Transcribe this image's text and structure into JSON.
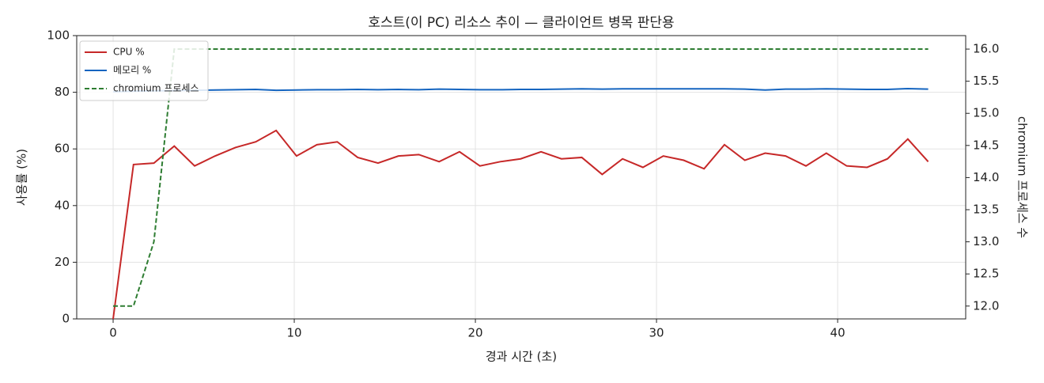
{
  "chart_data": {
    "type": "line",
    "title": "호스트(이 PC) 리소스 추이 — 클라이언트 병목 판단용",
    "x_label": "경과 시간 (초)",
    "y_label": "사용률 (%)",
    "y2_label": "chromium 프로세스 수",
    "x": [
      0,
      1.125,
      2.25,
      3.375,
      4.5,
      5.625,
      6.75,
      7.875,
      9,
      10.125,
      11.25,
      12.375,
      13.5,
      14.625,
      15.75,
      16.875,
      18,
      19.125,
      20.25,
      21.375,
      22.5,
      23.625,
      24.75,
      25.875,
      27,
      28.125,
      29.25,
      30.375,
      31.5,
      32.625,
      33.75,
      34.875,
      36,
      37.125,
      38.25,
      39.375,
      40.5,
      41.625,
      42.75,
      43.875,
      45
    ],
    "series": [
      {
        "name": "CPU %",
        "color": "#c62828",
        "dash": false,
        "axis": "y",
        "values": [
          0,
          54.5,
          55,
          61,
          54,
          57.5,
          60.5,
          62.5,
          66.5,
          57.5,
          61.5,
          62.5,
          57,
          55,
          57.5,
          58,
          55.5,
          59,
          54,
          55.5,
          56.5,
          59,
          56.5,
          57,
          51,
          56.5,
          53.5,
          57.5,
          56,
          53,
          61.5,
          56,
          58.5,
          57.5,
          54,
          58.5,
          54,
          53.5,
          56.5,
          63.5,
          55.5
        ]
      },
      {
        "name": "메모리 %",
        "color": "#1565c0",
        "dash": false,
        "axis": "y",
        "values": [
          80.2,
          80.4,
          80.5,
          80.6,
          80.7,
          80.8,
          80.9,
          81.0,
          80.7,
          80.8,
          80.9,
          80.9,
          81.0,
          80.9,
          81.0,
          80.9,
          81.1,
          81.0,
          80.9,
          80.9,
          81.0,
          81.0,
          81.1,
          81.2,
          81.1,
          81.2,
          81.2,
          81.2,
          81.2,
          81.2,
          81.2,
          81.1,
          80.8,
          81.1,
          81.1,
          81.2,
          81.1,
          81.0,
          81.0,
          81.3,
          81.1
        ]
      },
      {
        "name": "chromium 프로세스",
        "color": "#2e7d32",
        "dash": true,
        "axis": "y2",
        "values": [
          12,
          12,
          13,
          16,
          16,
          16,
          16,
          16,
          16,
          16,
          16,
          16,
          16,
          16,
          16,
          16,
          16,
          16,
          16,
          16,
          16,
          16,
          16,
          16,
          16,
          16,
          16,
          16,
          16,
          16,
          16,
          16,
          16,
          16,
          16,
          16,
          16,
          16,
          16,
          16,
          16
        ]
      }
    ],
    "xlim": [
      -2.01,
      47.07
    ],
    "xticks": [
      0,
      10,
      20,
      30,
      40
    ],
    "ylim": [
      0,
      100
    ],
    "yticks": [
      0,
      20,
      40,
      60,
      80,
      100
    ],
    "y2lim": [
      11.8,
      16.21
    ],
    "y2ticks": [
      {
        "value": 12,
        "label": "12.0"
      },
      12.5,
      {
        "value": 13,
        "label": "13.0"
      },
      13.5,
      {
        "value": 14,
        "label": "14.0"
      },
      14.5,
      {
        "value": 15,
        "label": "15.0"
      },
      15.5,
      {
        "value": 16,
        "label": "16.0"
      }
    ],
    "grid": true,
    "legend": "upper left"
  }
}
